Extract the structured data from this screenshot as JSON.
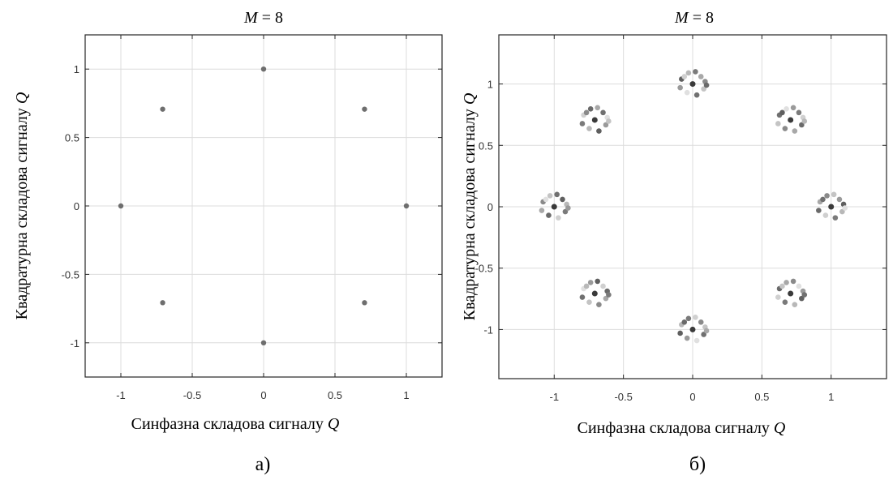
{
  "chart_data": [
    {
      "type": "scatter",
      "panel_label": "а)",
      "title_var": "M",
      "title_rest": " = 8",
      "xlabel_text": "Синфазна складова сигналу ",
      "xlabel_var": "Q",
      "ylabel_text": "Квадратурна складова сигналу ",
      "ylabel_var": "Q",
      "xlim": [
        -1.25,
        1.25
      ],
      "ylim": [
        -1.25,
        1.25
      ],
      "xticks": [
        -1,
        -0.5,
        0,
        0.5,
        1
      ],
      "xtick_labels": [
        "-1",
        "-0.5",
        "0",
        "0.5",
        "1"
      ],
      "yticks": [
        -1,
        -0.5,
        0,
        0.5,
        1
      ],
      "ytick_labels": [
        "-1",
        "-0.5",
        "0",
        "0.5",
        "1"
      ],
      "grid": true,
      "points": [
        {
          "x": 1,
          "y": 0
        },
        {
          "x": 0.707,
          "y": 0.707
        },
        {
          "x": 0,
          "y": 1
        },
        {
          "x": -0.707,
          "y": 0.707
        },
        {
          "x": -1,
          "y": 0
        },
        {
          "x": -0.707,
          "y": -0.707
        },
        {
          "x": 0,
          "y": -1
        },
        {
          "x": 0.707,
          "y": -0.707
        }
      ]
    },
    {
      "type": "scatter",
      "panel_label": "б)",
      "title_var": "M",
      "title_rest": " = 8",
      "xlabel_text": "Синфазна складова сигналу ",
      "xlabel_var": "Q",
      "ylabel_text": "Квадратурна складова сигналу ",
      "ylabel_var": "Q",
      "xlim": [
        -1.4,
        1.4
      ],
      "ylim": [
        -1.4,
        1.4
      ],
      "xticks": [
        -1,
        -0.5,
        0,
        0.5,
        1
      ],
      "xtick_labels": [
        "-1",
        "-0.5",
        "0",
        "0.5",
        "1"
      ],
      "yticks": [
        -1,
        -0.5,
        0,
        0.5,
        1
      ],
      "ytick_labels": [
        "-1",
        "-0.5",
        "0",
        "0.5",
        "1"
      ],
      "grid": true,
      "centers": [
        {
          "x": 1,
          "y": 0
        },
        {
          "x": 0.707,
          "y": 0.707
        },
        {
          "x": 0,
          "y": 1
        },
        {
          "x": -0.707,
          "y": 0.707
        },
        {
          "x": -1,
          "y": 0
        },
        {
          "x": -0.707,
          "y": -0.707
        },
        {
          "x": 0,
          "y": -1
        },
        {
          "x": 0.707,
          "y": -0.707
        }
      ],
      "noise_offsets": [
        {
          "dx": 0.06,
          "dy": 0.06
        },
        {
          "dx": 0.09,
          "dy": 0.02
        },
        {
          "dx": 0.08,
          "dy": -0.04
        },
        {
          "dx": 0.03,
          "dy": -0.09
        },
        {
          "dx": -0.04,
          "dy": -0.07
        },
        {
          "dx": -0.09,
          "dy": -0.03
        },
        {
          "dx": -0.08,
          "dy": 0.04
        },
        {
          "dx": -0.03,
          "dy": 0.09
        },
        {
          "dx": 0.02,
          "dy": 0.1
        },
        {
          "dx": -0.06,
          "dy": 0.06
        },
        {
          "dx": 0.1,
          "dy": -0.01
        }
      ]
    }
  ]
}
